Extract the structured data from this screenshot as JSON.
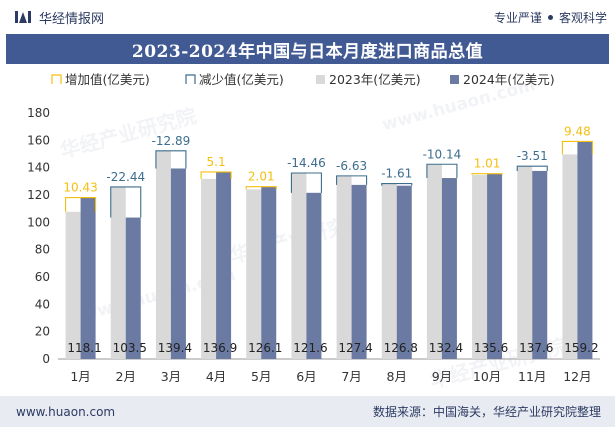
{
  "header": {
    "brand": "华经情报网",
    "tagline_left": "专业严谨",
    "tagline_right": "客观科学"
  },
  "watermarks": [
    "华经产业研究院",
    "www.huaon.com"
  ],
  "footer": {
    "url": "www.huaon.com",
    "source": "数据来源：中国海关，华经产业研究院整理"
  },
  "colors": {
    "title_bg": "#425a93",
    "bar_2023": "#d9d9d9",
    "bar_2024": "#6a7aa3",
    "increase": "#f5bf0f",
    "decrease": "#3d6d8d"
  },
  "chart_data": {
    "type": "bar",
    "title": "2023-2024年中国与日本月度进口商品总值",
    "categories": [
      "1月",
      "2月",
      "3月",
      "4月",
      "5月",
      "6月",
      "7月",
      "8月",
      "9月",
      "10月",
      "11月",
      "12月"
    ],
    "series": [
      {
        "name": "2023年(亿美元)",
        "values": [
          107.7,
          125.9,
          152.3,
          131.8,
          124.1,
          136.1,
          134.0,
          128.4,
          142.5,
          134.6,
          141.1,
          149.7
        ]
      },
      {
        "name": "2024年(亿美元)",
        "values": [
          118.1,
          103.5,
          139.4,
          136.9,
          126.1,
          121.6,
          127.4,
          126.8,
          132.4,
          135.6,
          137.6,
          159.2
        ]
      }
    ],
    "change": {
      "increase_name": "增加值(亿美元)",
      "decrease_name": "减少值(亿美元)",
      "values": [
        10.43,
        -22.44,
        -12.89,
        5.1,
        2.01,
        -14.46,
        -6.63,
        -1.61,
        -10.14,
        1.01,
        -3.51,
        9.48
      ]
    },
    "xlabel": "",
    "ylabel": "",
    "ylim": [
      0,
      180
    ],
    "yticks": [
      0,
      20,
      40,
      60,
      80,
      100,
      120,
      140,
      160,
      180
    ],
    "legend_position": "top",
    "grid": false
  }
}
